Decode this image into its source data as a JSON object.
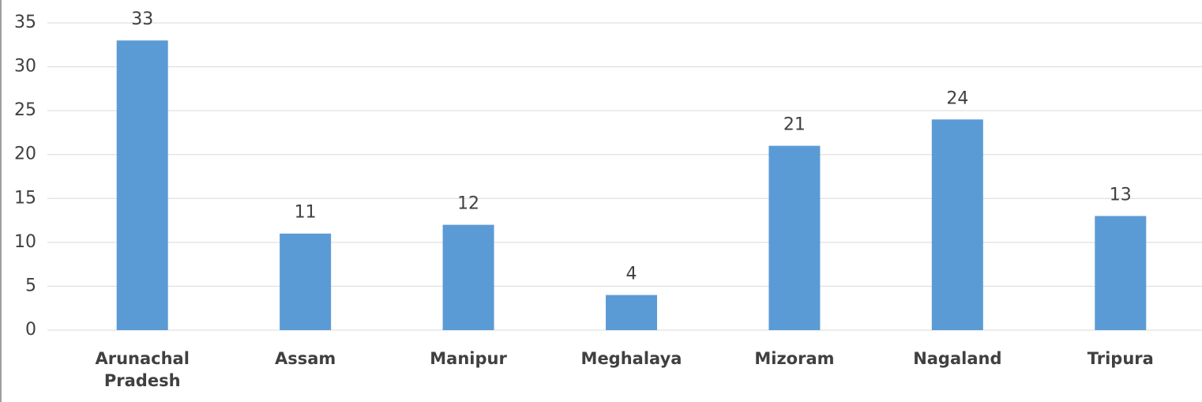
{
  "chart_data": {
    "type": "bar",
    "categories": [
      "Arunachal Pradesh",
      "Assam",
      "Manipur",
      "Meghalaya",
      "Mizoram",
      "Nagaland",
      "Tripura"
    ],
    "values": [
      33,
      11,
      12,
      4,
      21,
      24,
      13
    ],
    "color": "#5b9bd5",
    "ylim": [
      0,
      35
    ],
    "yticks": [
      0,
      5,
      10,
      15,
      20,
      25,
      30,
      35
    ],
    "grid": true
  }
}
